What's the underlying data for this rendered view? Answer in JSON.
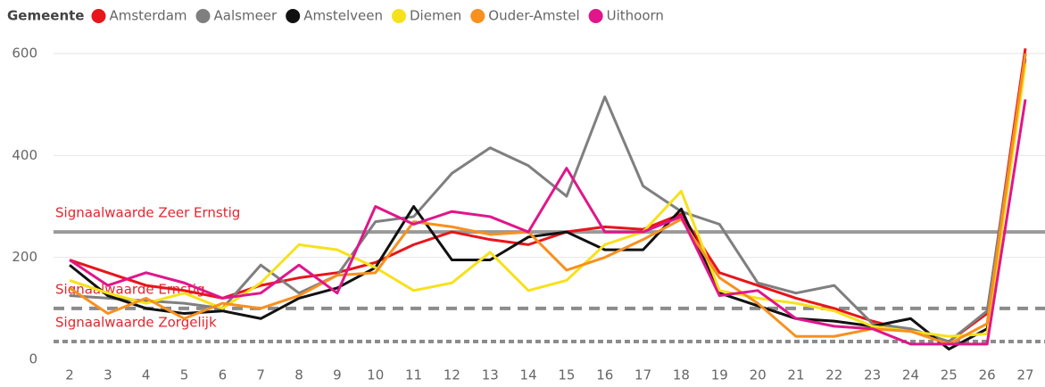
{
  "chart_data": {
    "type": "line",
    "legend_title": "Gemeente",
    "categories": [
      "2",
      "3",
      "4",
      "5",
      "6",
      "7",
      "8",
      "9",
      "10",
      "11",
      "12",
      "13",
      "14",
      "15",
      "16",
      "17",
      "18",
      "19",
      "20",
      "21",
      "22",
      "23",
      "24",
      "25",
      "26",
      "27"
    ],
    "ylim": [
      0,
      600
    ],
    "yticks": [
      0,
      200,
      400,
      600
    ],
    "grid": true,
    "legend": "top-left",
    "series": [
      {
        "name": "Amsterdam",
        "color": "#e8151b",
        "values": [
          195,
          170,
          145,
          135,
          120,
          145,
          160,
          170,
          190,
          225,
          250,
          235,
          225,
          250,
          260,
          255,
          285,
          170,
          145,
          120,
          100,
          75,
          55,
          35,
          90,
          610
        ]
      },
      {
        "name": "Aalsmeer",
        "color": "#7f7f7f",
        "values": [
          125,
          120,
          115,
          110,
          100,
          185,
          130,
          165,
          270,
          280,
          365,
          415,
          380,
          320,
          515,
          340,
          290,
          265,
          150,
          130,
          145,
          70,
          60,
          35,
          95,
          590
        ]
      },
      {
        "name": "Amstelveen",
        "color": "#111111",
        "values": [
          185,
          125,
          100,
          90,
          95,
          80,
          120,
          140,
          180,
          300,
          195,
          195,
          240,
          250,
          215,
          215,
          295,
          130,
          105,
          80,
          75,
          65,
          80,
          20,
          60,
          600
        ]
      },
      {
        "name": "Diemen",
        "color": "#f7e11a",
        "values": [
          155,
          130,
          110,
          130,
          100,
          150,
          225,
          215,
          180,
          135,
          150,
          210,
          135,
          155,
          225,
          250,
          330,
          135,
          120,
          110,
          95,
          65,
          55,
          45,
          50,
          580
        ]
      },
      {
        "name": "Ouder-Amstel",
        "color": "#f7901e",
        "values": [
          140,
          90,
          120,
          80,
          110,
          100,
          125,
          165,
          170,
          270,
          260,
          245,
          250,
          175,
          200,
          235,
          275,
          160,
          110,
          45,
          45,
          60,
          55,
          30,
          70,
          600
        ]
      },
      {
        "name": "Uithoorn",
        "color": "#e0168a",
        "values": [
          195,
          145,
          170,
          150,
          120,
          130,
          185,
          130,
          300,
          265,
          290,
          280,
          250,
          375,
          250,
          250,
          280,
          125,
          135,
          80,
          65,
          60,
          30,
          30,
          30,
          510
        ]
      }
    ],
    "reference_lines": [
      {
        "label": "Signaalwaarde Zeer Ernstig",
        "value": 250,
        "style": "solid"
      },
      {
        "label": "Signaalwaarde Ernstig",
        "value": 100,
        "style": "dashed"
      },
      {
        "label": "Signaalwaarde Zorgelijk",
        "value": 35,
        "style": "dotted"
      }
    ]
  }
}
